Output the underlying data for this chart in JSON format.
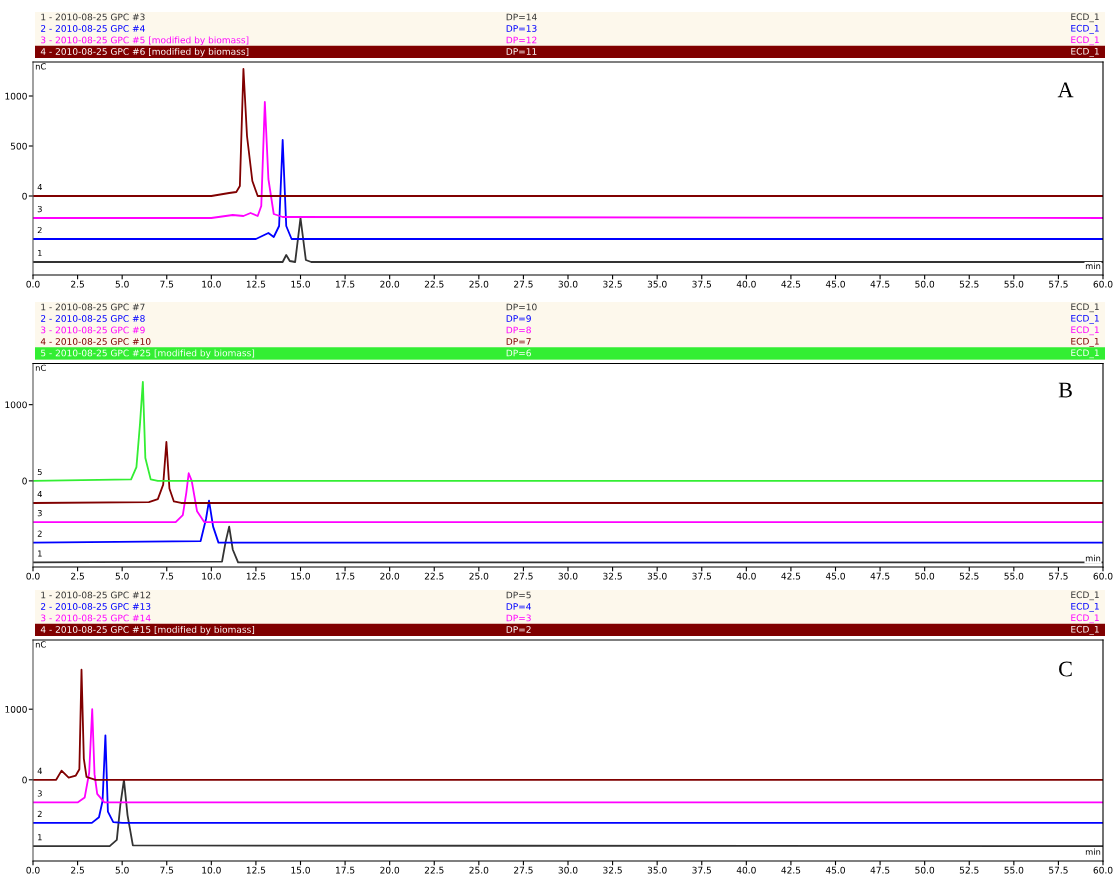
{
  "chart_data": [
    {
      "type": "line",
      "xlabel": "min",
      "ylabel": "nC",
      "legend": "top",
      "grid": false,
      "marker": "none",
      "line_style": "solid",
      "xlim": [
        0,
        60
      ],
      "xticks": [
        {
          "value": 0,
          "label": "0.0"
        },
        {
          "value": 2.5,
          "label": "2.5"
        },
        {
          "value": 5,
          "label": "5.0"
        },
        {
          "value": 7.5,
          "label": "7.5"
        },
        {
          "value": 10,
          "label": "10.0"
        },
        {
          "value": 12.5,
          "label": "12.5"
        },
        {
          "value": 15,
          "label": "15.0"
        },
        {
          "value": 17.5,
          "label": "17.5"
        },
        {
          "value": 20,
          "label": "20.0"
        },
        {
          "value": 22.5,
          "label": "22.5"
        },
        {
          "value": 25,
          "label": "25.0"
        },
        {
          "value": 27.5,
          "label": "27.5"
        },
        {
          "value": 30,
          "label": "30.0"
        },
        {
          "value": 32.5,
          "label": "32.5"
        },
        {
          "value": 35,
          "label": "35.0"
        },
        {
          "value": 37.5,
          "label": "37.5"
        },
        {
          "value": 40,
          "label": "40.0"
        },
        {
          "value": 42.5,
          "label": "42.5"
        },
        {
          "value": 45,
          "label": "45.0"
        },
        {
          "value": 47.5,
          "label": "47.5"
        },
        {
          "value": 50,
          "label": "50.0"
        },
        {
          "value": 52.5,
          "label": "52.5"
        },
        {
          "value": 55,
          "label": "55.0"
        },
        {
          "value": 57.5,
          "label": "57.5"
        },
        {
          "value": 60,
          "label": "60.0"
        }
      ],
      "ylim": [
        -790,
        1340
      ],
      "yticks": [
        0,
        500,
        1000
      ],
      "series": [
        {
          "name": "1 - 2010-08-25 GPC #3",
          "color": "#333333",
          "x": [
            0,
            10,
            14.0,
            14.2,
            14.4,
            14.7,
            15.0,
            15.3,
            15.6,
            60
          ],
          "values": [
            -660,
            -660,
            -660,
            -590,
            -650,
            -660,
            -220,
            -640,
            -660,
            -660
          ]
        },
        {
          "name": "2 - 2010-08-25 GPC #4",
          "color": "#0000ff",
          "x": [
            0,
            12.5,
            13.2,
            13.5,
            13.8,
            14.0,
            14.2,
            14.5,
            60
          ],
          "values": [
            -430,
            -430,
            -370,
            -410,
            -300,
            560,
            -300,
            -430,
            -430
          ]
        },
        {
          "name": "3 - 2010-08-25 GPC #5 [modified by biomass]",
          "color": "#ff00ff",
          "x": [
            0,
            10,
            11.2,
            11.8,
            12.2,
            12.6,
            12.8,
            13.0,
            13.2,
            13.5,
            14,
            60
          ],
          "values": [
            -220,
            -220,
            -190,
            -200,
            -170,
            -200,
            -100,
            940,
            170,
            -180,
            -210,
            -220
          ]
        },
        {
          "name": "4 - 2010-08-25 GPC #6 [modified by biomass]",
          "color": "#800000",
          "x": [
            0,
            10,
            11.0,
            11.4,
            11.6,
            11.8,
            12.0,
            12.3,
            12.6,
            60
          ],
          "values": [
            0,
            0,
            30,
            40,
            100,
            1270,
            600,
            150,
            0,
            0
          ]
        }
      ],
      "annotations": [
        "DP=14",
        "DP=13",
        "DP=12",
        "DP=11",
        "ECD_1",
        "ECD_1",
        "ECD_1",
        "ECD_1",
        "A",
        "1",
        "2",
        "3",
        "4"
      ]
    },
    {
      "type": "line",
      "xlabel": "min",
      "ylabel": "nC",
      "legend": "top",
      "grid": false,
      "marker": "none",
      "line_style": "solid",
      "xlim": [
        0,
        60
      ],
      "xticks": [
        {
          "value": 0,
          "label": "0.0"
        },
        {
          "value": 2.5,
          "label": "2.5"
        },
        {
          "value": 5,
          "label": "5.0"
        },
        {
          "value": 7.5,
          "label": "7.5"
        },
        {
          "value": 10,
          "label": "10.0"
        },
        {
          "value": 12.5,
          "label": "12.5"
        },
        {
          "value": 15,
          "label": "15.0"
        },
        {
          "value": 17.5,
          "label": "17.5"
        },
        {
          "value": 20,
          "label": "20.0"
        },
        {
          "value": 22.5,
          "label": "22.5"
        },
        {
          "value": 25,
          "label": "25.0"
        },
        {
          "value": 27.5,
          "label": "27.5"
        },
        {
          "value": 30,
          "label": "30.0"
        },
        {
          "value": 32.5,
          "label": "32.5"
        },
        {
          "value": 35,
          "label": "35.0"
        },
        {
          "value": 37.5,
          "label": "37.5"
        },
        {
          "value": 40,
          "label": "40.0"
        },
        {
          "value": 42.5,
          "label": "42.5"
        },
        {
          "value": 45,
          "label": "45.0"
        },
        {
          "value": 47.5,
          "label": "47.5"
        },
        {
          "value": 50,
          "label": "50.0"
        },
        {
          "value": 52.5,
          "label": "52.5"
        },
        {
          "value": 55,
          "label": "55.0"
        },
        {
          "value": 57.5,
          "label": "57.5"
        },
        {
          "value": 60,
          "label": "60.0"
        }
      ],
      "ylim": [
        -1130,
        1540
      ],
      "yticks": [
        0,
        1000
      ],
      "series": [
        {
          "name": "1 - 2010-08-25 GPC #7",
          "color": "#333333",
          "x": [
            0,
            10.6,
            10.8,
            11.0,
            11.2,
            11.5,
            60
          ],
          "values": [
            -1070,
            -1060,
            -800,
            -600,
            -900,
            -1070,
            -1070
          ]
        },
        {
          "name": "2 - 2010-08-25 GPC #8",
          "color": "#0000ff",
          "x": [
            0,
            9.4,
            9.7,
            9.87,
            10.1,
            10.4,
            60
          ],
          "values": [
            -810,
            -790,
            -500,
            -260,
            -600,
            -810,
            -810
          ]
        },
        {
          "name": "3 - 2010-08-25 GPC #9",
          "color": "#ff00ff",
          "x": [
            0,
            8.0,
            8.4,
            8.6,
            8.73,
            8.9,
            9.2,
            9.6,
            60
          ],
          "values": [
            -540,
            -540,
            -450,
            -150,
            100,
            0,
            -400,
            -540,
            -540
          ]
        },
        {
          "name": "4 - 2010-08-25 GPC #10",
          "color": "#800000",
          "x": [
            0,
            6.5,
            7.0,
            7.3,
            7.48,
            7.65,
            7.9,
            8.3,
            60
          ],
          "values": [
            -290,
            -280,
            -240,
            -50,
            510,
            -100,
            -270,
            -290,
            -290
          ]
        },
        {
          "name": "5 - 2010-08-25 GPC #25 [modified by biomass]",
          "color": "#33ee33",
          "x": [
            0,
            5.5,
            5.8,
            6.0,
            6.16,
            6.3,
            6.6,
            7.0,
            60
          ],
          "values": [
            0,
            20,
            180,
            750,
            1300,
            300,
            20,
            0,
            0
          ]
        }
      ],
      "annotations": [
        "DP=10",
        "DP=9",
        "DP=8",
        "DP=7",
        "DP=6",
        "ECD_1",
        "ECD_1",
        "ECD_1",
        "ECD_1",
        "ECD_1",
        "B",
        "1",
        "2",
        "3",
        "4",
        "5"
      ]
    },
    {
      "type": "line",
      "xlabel": "min",
      "ylabel": "nC",
      "legend": "top",
      "grid": false,
      "marker": "none",
      "line_style": "solid",
      "xlim": [
        0,
        60
      ],
      "xticks": [
        {
          "value": 0,
          "label": "0.0"
        },
        {
          "value": 2.5,
          "label": "2.5"
        },
        {
          "value": 5,
          "label": "5.0"
        },
        {
          "value": 7.5,
          "label": "7.5"
        },
        {
          "value": 10,
          "label": "10.0"
        },
        {
          "value": 12.5,
          "label": "12.5"
        },
        {
          "value": 15,
          "label": "15.0"
        },
        {
          "value": 17.5,
          "label": "17.5"
        },
        {
          "value": 20,
          "label": "20.0"
        },
        {
          "value": 22.5,
          "label": "22.5"
        },
        {
          "value": 25,
          "label": "25.0"
        },
        {
          "value": 27.5,
          "label": "27.5"
        },
        {
          "value": 30,
          "label": "30.0"
        },
        {
          "value": 32.5,
          "label": "32.5"
        },
        {
          "value": 35,
          "label": "35.0"
        },
        {
          "value": 37.5,
          "label": "37.5"
        },
        {
          "value": 40,
          "label": "40.0"
        },
        {
          "value": 42.5,
          "label": "42.5"
        },
        {
          "value": 45,
          "label": "45.0"
        },
        {
          "value": 47.5,
          "label": "47.5"
        },
        {
          "value": 50,
          "label": "50.0"
        },
        {
          "value": 52.5,
          "label": "52.5"
        },
        {
          "value": 55,
          "label": "55.0"
        },
        {
          "value": 57.5,
          "label": "57.5"
        },
        {
          "value": 60,
          "label": "60.0"
        }
      ],
      "ylim": [
        -1150,
        1980
      ],
      "yticks": [
        0,
        1000
      ],
      "series": [
        {
          "name": "1 - 2010-08-25 GPC #12",
          "color": "#333333",
          "x": [
            0,
            4.3,
            4.7,
            4.9,
            5.1,
            5.3,
            5.6,
            60
          ],
          "values": [
            -940,
            -940,
            -850,
            -350,
            0,
            -500,
            -930,
            -940
          ]
        },
        {
          "name": "2 - 2010-08-25 GPC #13",
          "color": "#0000ff",
          "x": [
            0,
            3.3,
            3.7,
            3.9,
            4.06,
            4.2,
            4.5,
            5,
            60
          ],
          "values": [
            -610,
            -610,
            -530,
            -300,
            630,
            -450,
            -600,
            -610,
            -610
          ]
        },
        {
          "name": "3 - 2010-08-25 GPC #14",
          "color": "#ff00ff",
          "x": [
            0,
            2.5,
            2.9,
            3.15,
            3.32,
            3.45,
            3.6,
            4.0,
            60
          ],
          "values": [
            -320,
            -320,
            -250,
            100,
            1000,
            80,
            -200,
            -320,
            -320
          ]
        },
        {
          "name": "4 - 2010-08-25 GPC #15 [modified by biomass]",
          "color": "#800000",
          "x": [
            0,
            1.3,
            1.6,
            2.0,
            2.4,
            2.6,
            2.72,
            2.85,
            3.0,
            3.5,
            60
          ],
          "values": [
            0,
            0,
            130,
            30,
            60,
            150,
            1560,
            300,
            40,
            0,
            0
          ]
        }
      ],
      "annotations": [
        "DP=5",
        "DP=4",
        "DP=3",
        "DP=2",
        "ECD_1",
        "ECD_1",
        "ECD_1",
        "ECD_1",
        "C",
        "1",
        "2",
        "3",
        "4"
      ]
    }
  ]
}
